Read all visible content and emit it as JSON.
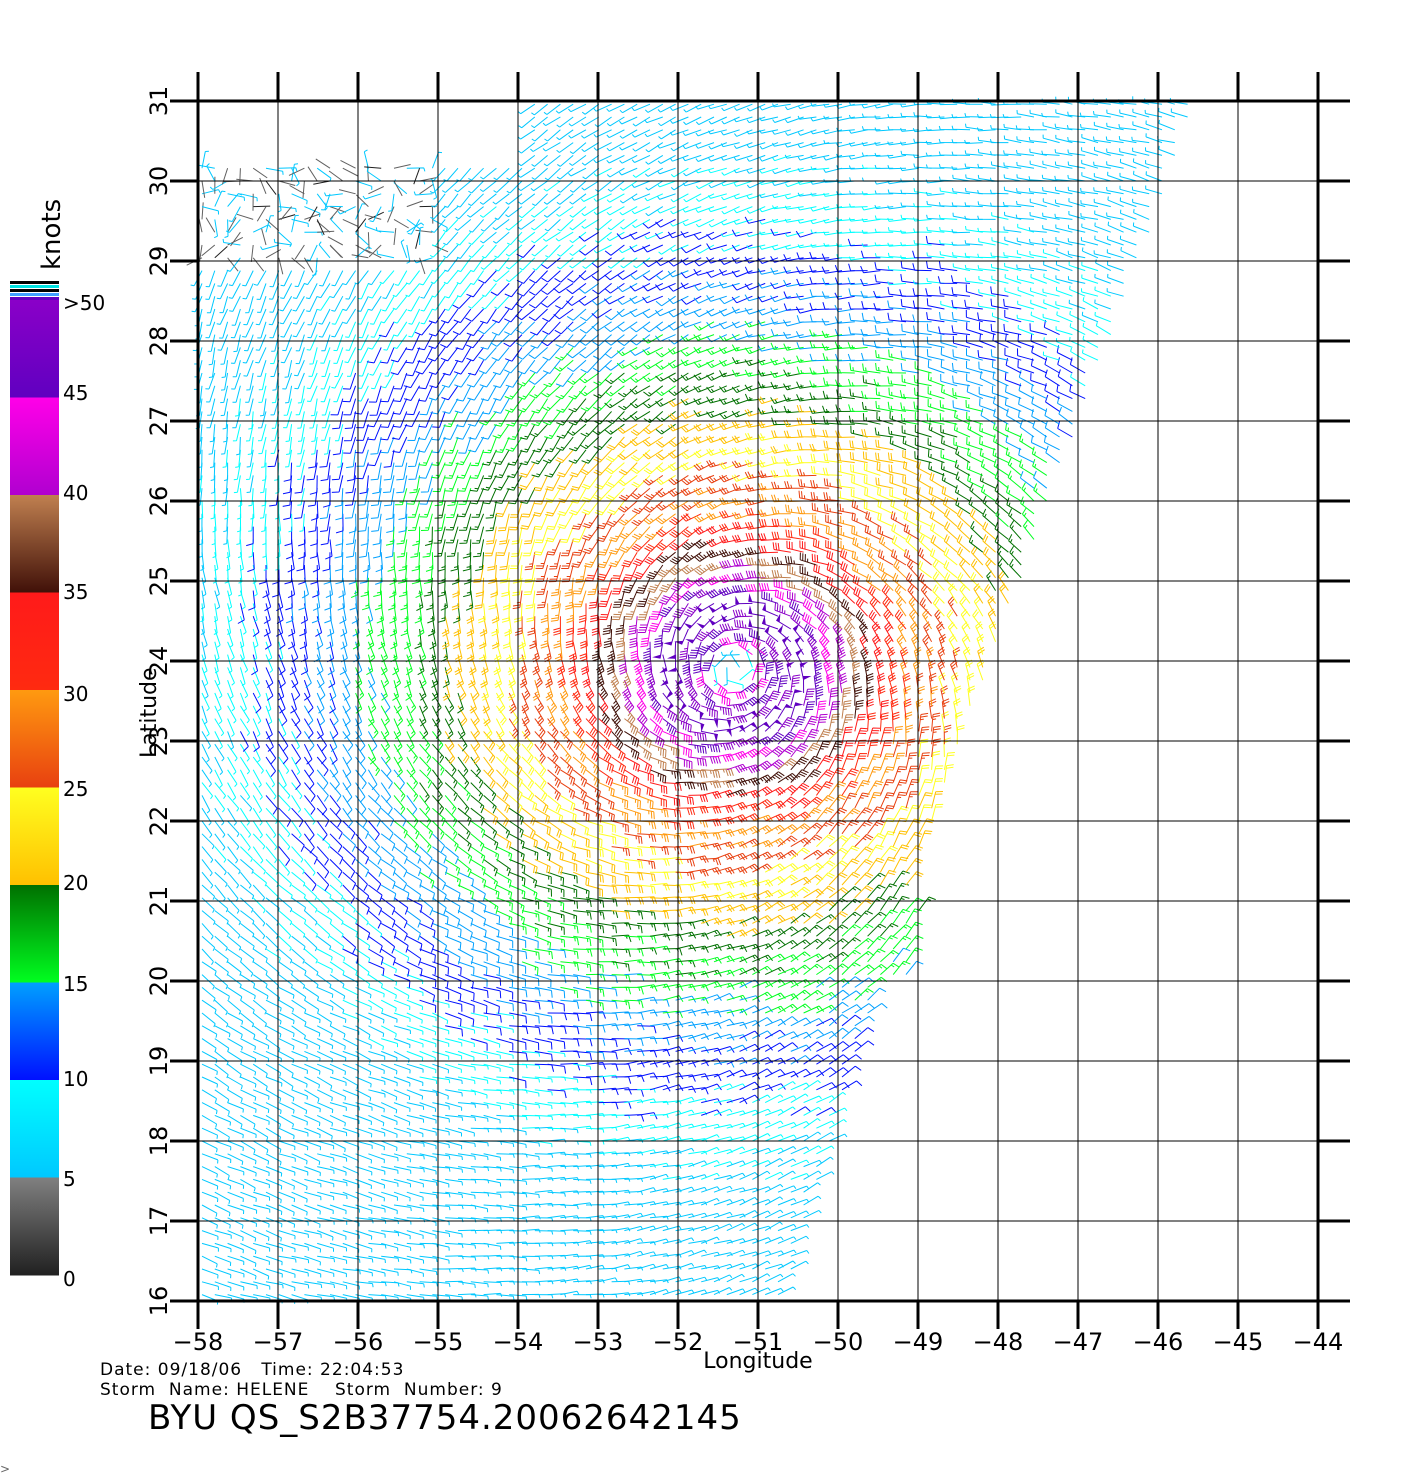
{
  "colorbar": {
    "unit_label": "knots",
    "tick_labels": [
      ">50",
      "45",
      "40",
      "35",
      "30",
      "25",
      "20",
      "15",
      "10",
      "5",
      "0"
    ],
    "bands": [
      {
        "range": "45-50",
        "top": "#8a00c8",
        "bottom": "#6000c0"
      },
      {
        "range": "40-45",
        "top": "#ff00e8",
        "bottom": "#b000d0"
      },
      {
        "range": "35-40",
        "top": "#c08050",
        "bottom": "#401008"
      },
      {
        "range": "30-35",
        "top": "#ff1a1a",
        "bottom": "#ff2a10"
      },
      {
        "range": "25-30",
        "top": "#ff9a10",
        "bottom": "#e84010"
      },
      {
        "range": "20-25",
        "top": "#ffff20",
        "bottom": "#ffc000"
      },
      {
        "range": "15-20",
        "top": "#007000",
        "bottom": "#00ff20"
      },
      {
        "range": "10-15",
        "top": "#00a0ff",
        "bottom": "#0010ff"
      },
      {
        "range": "5-10",
        "top": "#00ffff",
        "bottom": "#00c8ff"
      },
      {
        "range": "0-5",
        "top": "#808080",
        "bottom": "#202020"
      }
    ]
  },
  "map": {
    "xlabel": "Longitude",
    "ylabel": "Latitude",
    "lon_range": [
      -58,
      -44
    ],
    "lat_range": [
      16,
      31
    ],
    "lon_ticks": [
      "-58",
      "-57",
      "-56",
      "-55",
      "-54",
      "-53",
      "-52",
      "-51",
      "-50",
      "-49",
      "-48",
      "-47",
      "-46",
      "-45",
      "-44"
    ],
    "lat_ticks": [
      "16",
      "17",
      "18",
      "19",
      "20",
      "21",
      "22",
      "23",
      "24",
      "25",
      "26",
      "27",
      "28",
      "29",
      "30",
      "31"
    ],
    "storm_center": {
      "lon": -51.3,
      "lat": 23.9
    },
    "field_type": "wind barbs (speed colored)"
  },
  "info": {
    "line1": "Date: 09/18/06   Time: 22:04:53",
    "line2": "Storm  Name: HELENE    Storm  Number: 9",
    "title": "BYU  QS_S2B37754.20062642145"
  },
  "corner_mark": ">"
}
